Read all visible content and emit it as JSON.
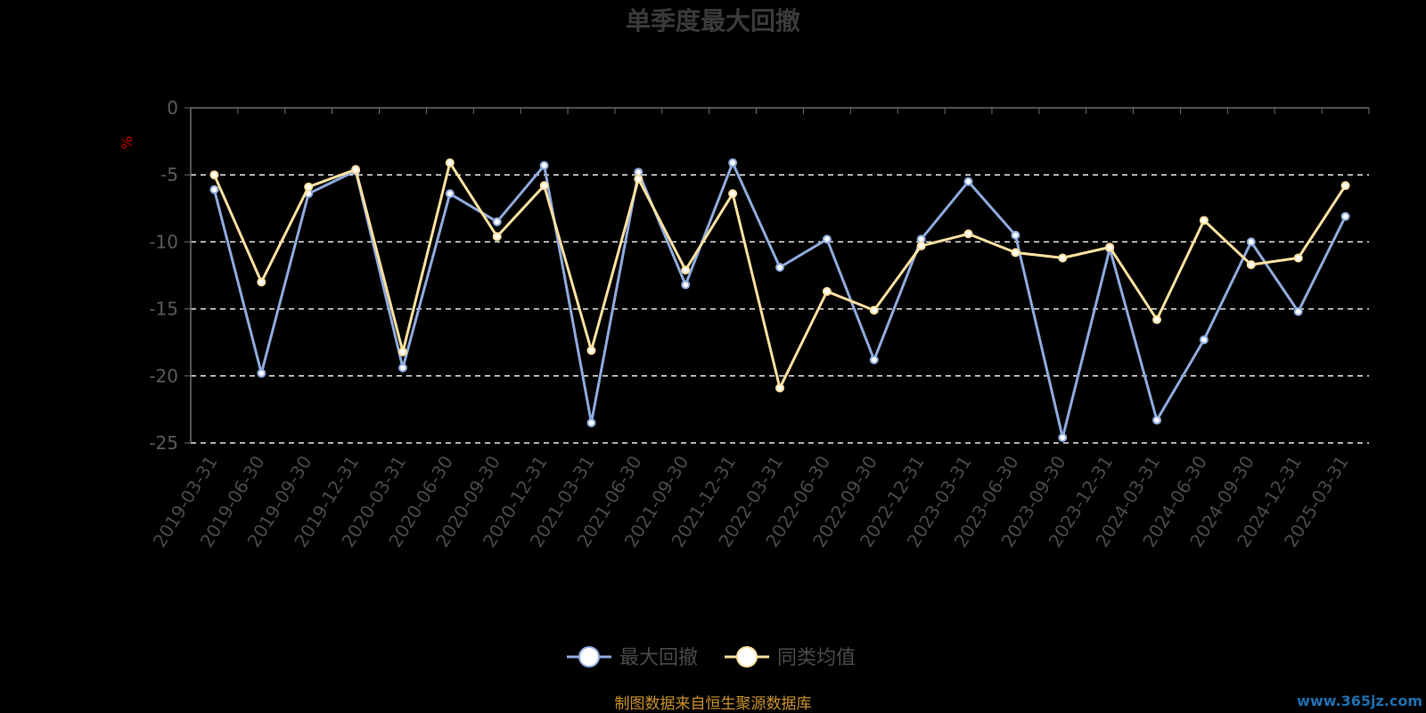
{
  "chart_data": {
    "type": "line",
    "title": "单季度最大回撤",
    "unit_label": "%",
    "ylim": [
      -25,
      0
    ],
    "yticks": [
      "0",
      "-5",
      "-10",
      "-15",
      "-20",
      "-25"
    ],
    "grid": "dashed horizontal",
    "legend_position": "bottom",
    "categories": [
      "2019-03-31",
      "2019-06-30",
      "2019-09-30",
      "2019-12-31",
      "2020-03-31",
      "2020-06-30",
      "2020-09-30",
      "2020-12-31",
      "2021-03-31",
      "2021-06-30",
      "2021-09-30",
      "2021-12-31",
      "2022-03-31",
      "2022-06-30",
      "2022-09-30",
      "2022-12-31",
      "2023-03-31",
      "2023-06-30",
      "2023-09-30",
      "2023-12-31",
      "2024-03-31",
      "2024-06-30",
      "2024-09-30",
      "2024-12-31",
      "2025-03-31"
    ],
    "series": [
      {
        "name": "最大回撤",
        "color": "#8faadc",
        "values": [
          -6.1,
          -19.8,
          -6.4,
          -4.7,
          -19.4,
          -6.4,
          -8.5,
          -4.3,
          -23.5,
          -4.8,
          -13.2,
          -4.1,
          -11.9,
          -9.8,
          -18.8,
          -9.8,
          -5.5,
          -9.5,
          -24.6,
          -10.5,
          -23.3,
          -17.3,
          -10.0,
          -15.2,
          -8.1
        ]
      },
      {
        "name": "同类均值",
        "color": "#ffe0a0",
        "values": [
          -5.0,
          -13.0,
          -5.9,
          -4.6,
          -18.2,
          -4.1,
          -9.6,
          -5.8,
          -18.1,
          -5.3,
          -12.1,
          -6.4,
          -20.9,
          -13.7,
          -15.1,
          -10.3,
          -9.4,
          -10.8,
          -11.2,
          -10.4,
          -15.8,
          -8.4,
          -11.7,
          -11.2,
          -5.8
        ]
      }
    ]
  },
  "source_note": "制图数据来自恒生聚源数据库",
  "watermark": "www.365jz.com"
}
